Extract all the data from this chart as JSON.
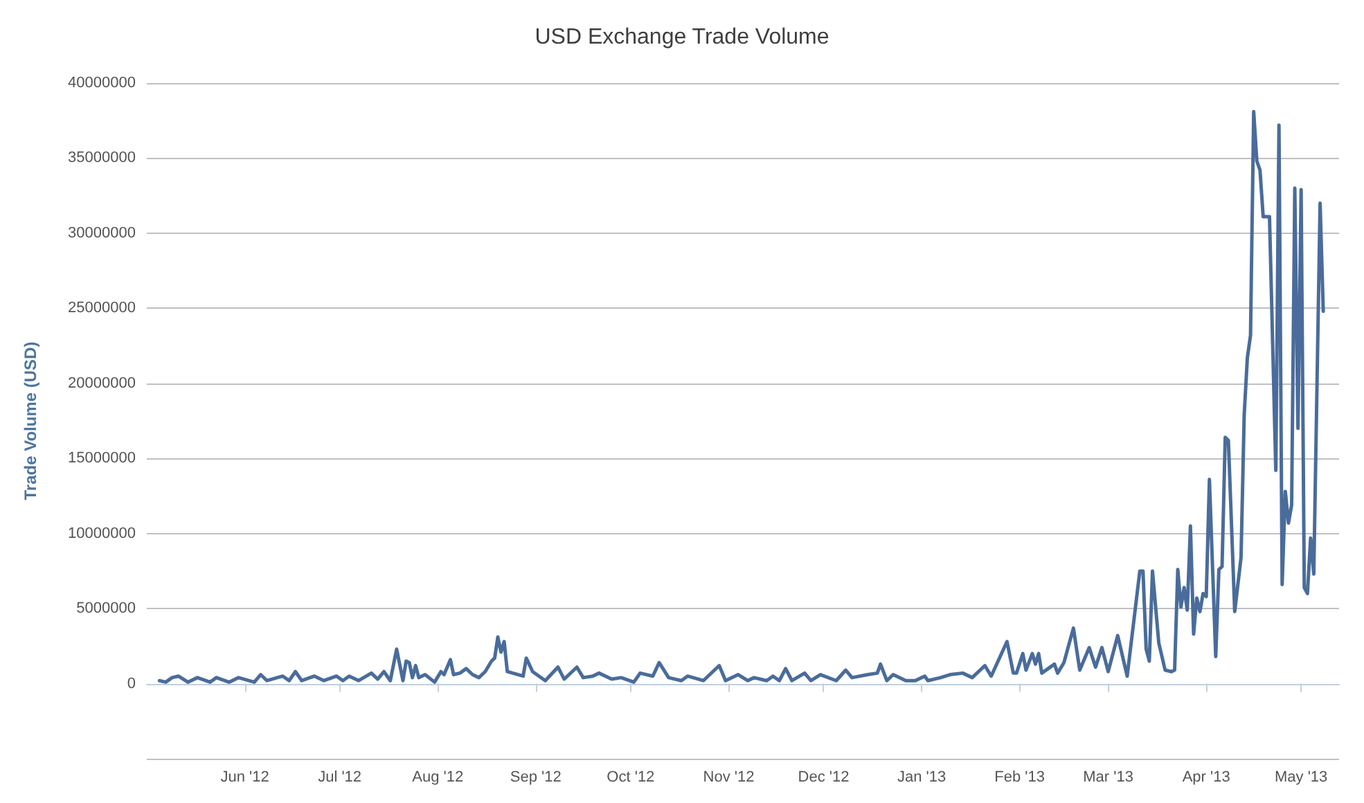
{
  "chart_data": {
    "type": "line",
    "title": "USD Exchange Trade Volume",
    "ylabel": "Trade Volume (USD)",
    "x": [
      "2012-05-05",
      "2012-05-07",
      "2012-05-09",
      "2012-05-11",
      "2012-05-14",
      "2012-05-17",
      "2012-05-21",
      "2012-05-23",
      "2012-05-27",
      "2012-05-30",
      "2012-06-04",
      "2012-06-06",
      "2012-06-08",
      "2012-06-13",
      "2012-06-15",
      "2012-06-17",
      "2012-06-19",
      "2012-06-23",
      "2012-06-26",
      "2012-06-30",
      "2012-07-02",
      "2012-07-04",
      "2012-07-07",
      "2012-07-11",
      "2012-07-13",
      "2012-07-15",
      "2012-07-17",
      "2012-07-19",
      "2012-07-21",
      "2012-07-22",
      "2012-07-23",
      "2012-07-24",
      "2012-07-25",
      "2012-07-26",
      "2012-07-28",
      "2012-07-31",
      "2012-08-02",
      "2012-08-03",
      "2012-08-05",
      "2012-08-06",
      "2012-08-08",
      "2012-08-10",
      "2012-08-12",
      "2012-08-14",
      "2012-08-16",
      "2012-08-18",
      "2012-08-19",
      "2012-08-20",
      "2012-08-21",
      "2012-08-22",
      "2012-08-23",
      "2012-08-28",
      "2012-08-29",
      "2012-08-31",
      "2012-09-02",
      "2012-09-04",
      "2012-09-08",
      "2012-09-10",
      "2012-09-14",
      "2012-09-16",
      "2012-09-19",
      "2012-09-21",
      "2012-09-25",
      "2012-09-28",
      "2012-10-02",
      "2012-10-04",
      "2012-10-08",
      "2012-10-10",
      "2012-10-13",
      "2012-10-17",
      "2012-10-19",
      "2012-10-24",
      "2012-10-26",
      "2012-10-29",
      "2012-10-31",
      "2012-11-04",
      "2012-11-07",
      "2012-11-09",
      "2012-11-13",
      "2012-11-15",
      "2012-11-17",
      "2012-11-19",
      "2012-11-21",
      "2012-11-25",
      "2012-11-27",
      "2012-11-30",
      "2012-12-05",
      "2012-12-08",
      "2012-12-10",
      "2012-12-15",
      "2012-12-18",
      "2012-12-19",
      "2012-12-21",
      "2012-12-23",
      "2012-12-27",
      "2012-12-30",
      "2013-01-02",
      "2013-01-03",
      "2013-01-07",
      "2013-01-10",
      "2013-01-14",
      "2013-01-17",
      "2013-01-21",
      "2013-01-23",
      "2013-01-28",
      "2013-01-30",
      "2013-01-31",
      "2013-02-02",
      "2013-02-03",
      "2013-02-05",
      "2013-02-06",
      "2013-02-07",
      "2013-02-08",
      "2013-02-12",
      "2013-02-13",
      "2013-02-15",
      "2013-02-18",
      "2013-02-20",
      "2013-02-23",
      "2013-02-25",
      "2013-02-27",
      "2013-03-01",
      "2013-03-04",
      "2013-03-07",
      "2013-03-11",
      "2013-03-12",
      "2013-03-13",
      "2013-03-14",
      "2013-03-15",
      "2013-03-17",
      "2013-03-19",
      "2013-03-21",
      "2013-03-22",
      "2013-03-23",
      "2013-03-24",
      "2013-03-25",
      "2013-03-26",
      "2013-03-27",
      "2013-03-28",
      "2013-03-29",
      "2013-03-30",
      "2013-03-31",
      "2013-04-01",
      "2013-04-02",
      "2013-04-04",
      "2013-04-05",
      "2013-04-06",
      "2013-04-07",
      "2013-04-08",
      "2013-04-10",
      "2013-04-12",
      "2013-04-13",
      "2013-04-14",
      "2013-04-15",
      "2013-04-16",
      "2013-04-17",
      "2013-04-18",
      "2013-04-19",
      "2013-04-21",
      "2013-04-23",
      "2013-04-24",
      "2013-04-25",
      "2013-04-26",
      "2013-04-27",
      "2013-04-28",
      "2013-04-29",
      "2013-04-30",
      "2013-05-01",
      "2013-05-02",
      "2013-05-03",
      "2013-05-04",
      "2013-05-05",
      "2013-05-07",
      "2013-05-08"
    ],
    "series": [
      {
        "color": "#4a6c9b",
        "values": [
          200000,
          100000,
          400000,
          500000,
          100000,
          400000,
          100000,
          400000,
          100000,
          400000,
          100000,
          600000,
          200000,
          500000,
          200000,
          800000,
          200000,
          500000,
          200000,
          500000,
          200000,
          500000,
          200000,
          700000,
          300000,
          800000,
          200000,
          2300000,
          200000,
          1500000,
          1400000,
          400000,
          1200000,
          400000,
          600000,
          100000,
          800000,
          600000,
          1600000,
          600000,
          700000,
          1000000,
          600000,
          400000,
          800000,
          1500000,
          1700000,
          3100000,
          2100000,
          2800000,
          800000,
          500000,
          1700000,
          800000,
          500000,
          200000,
          1100000,
          300000,
          1100000,
          400000,
          500000,
          700000,
          300000,
          400000,
          100000,
          700000,
          500000,
          1400000,
          400000,
          200000,
          500000,
          200000,
          600000,
          1200000,
          200000,
          600000,
          200000,
          400000,
          200000,
          500000,
          200000,
          1000000,
          200000,
          700000,
          200000,
          600000,
          200000,
          900000,
          400000,
          600000,
          700000,
          1300000,
          200000,
          600000,
          200000,
          200000,
          500000,
          200000,
          400000,
          600000,
          700000,
          400000,
          1200000,
          500000,
          2800000,
          700000,
          700000,
          2000000,
          900000,
          2000000,
          1300000,
          2000000,
          700000,
          1300000,
          700000,
          1400000,
          3700000,
          900000,
          2400000,
          1100000,
          2400000,
          800000,
          3200000,
          500000,
          7500000,
          7500000,
          2300000,
          1500000,
          7500000,
          2700000,
          900000,
          800000,
          900000,
          7600000,
          5100000,
          6400000,
          4900000,
          10500000,
          3300000,
          5700000,
          4800000,
          6000000,
          5800000,
          13600000,
          1800000,
          7600000,
          7800000,
          16400000,
          16200000,
          4800000,
          8400000,
          17900000,
          21700000,
          23200000,
          38100000,
          34800000,
          34200000,
          31100000,
          31100000,
          14200000,
          37200000,
          6600000,
          12800000,
          10700000,
          11900000,
          33000000,
          17000000,
          32900000,
          6400000,
          6000000,
          9700000,
          7300000,
          32000000,
          24800000
        ]
      }
    ],
    "xlim": [
      "2012-05-01",
      "2013-05-13"
    ],
    "xticks": [
      {
        "value": "2012-06-01",
        "label": "Jun '12"
      },
      {
        "value": "2012-07-01",
        "label": "Jul '12"
      },
      {
        "value": "2012-08-01",
        "label": "Aug '12"
      },
      {
        "value": "2012-09-01",
        "label": "Sep '12"
      },
      {
        "value": "2012-10-01",
        "label": "Oct '12"
      },
      {
        "value": "2012-11-01",
        "label": "Nov '12"
      },
      {
        "value": "2012-12-01",
        "label": "Dec '12"
      },
      {
        "value": "2013-01-01",
        "label": "Jan '13"
      },
      {
        "value": "2013-02-01",
        "label": "Feb '13"
      },
      {
        "value": "2013-03-01",
        "label": "Mar '13"
      },
      {
        "value": "2013-04-01",
        "label": "Apr '13"
      },
      {
        "value": "2013-05-01",
        "label": "May '13"
      }
    ],
    "ylim": [
      -5000000,
      40000000
    ],
    "yticks": [
      0,
      5000000,
      10000000,
      15000000,
      20000000,
      25000000,
      30000000,
      35000000,
      40000000
    ],
    "grid": "y",
    "marker": "none",
    "line_style": "solid"
  }
}
